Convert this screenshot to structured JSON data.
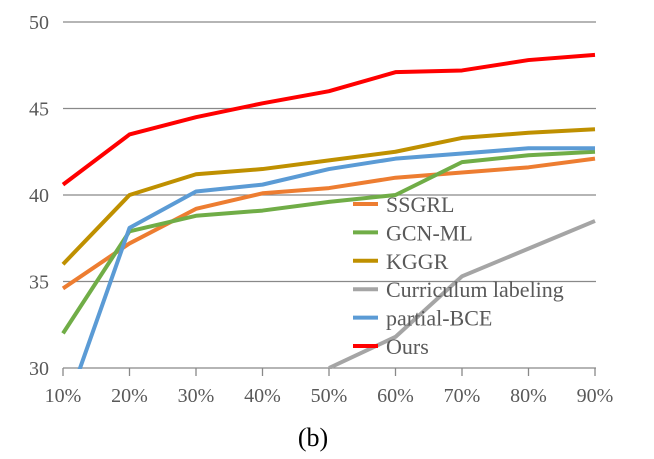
{
  "chart_data": {
    "type": "line",
    "title": "",
    "caption": "(b)",
    "xlabel": "",
    "ylabel": "",
    "categories": [
      "10%",
      "20%",
      "30%",
      "40%",
      "50%",
      "60%",
      "70%",
      "80%",
      "90%"
    ],
    "ylim": [
      30,
      50
    ],
    "yticks": [
      30,
      35,
      40,
      45,
      50
    ],
    "ytick_labels": [
      "30",
      "35",
      "40",
      "45",
      "50"
    ],
    "grid": true,
    "legend_position": "center-right",
    "series": [
      {
        "name": "SSGRL",
        "color": "#ED7D31",
        "values": [
          34.6,
          37.2,
          39.2,
          40.1,
          40.4,
          41.0,
          41.3,
          41.6,
          42.1
        ]
      },
      {
        "name": "GCN-ML",
        "color": "#70AD47",
        "values": [
          32.0,
          37.9,
          38.8,
          39.1,
          39.6,
          40.0,
          41.9,
          42.3,
          42.5
        ]
      },
      {
        "name": "KGGR",
        "color": "#BF9000",
        "values": [
          36.0,
          40.0,
          41.2,
          41.5,
          42.0,
          42.5,
          43.3,
          43.6,
          43.8
        ]
      },
      {
        "name": "Curriculum labeling",
        "color": "#A5A5A5",
        "values": [
          null,
          null,
          null,
          null,
          30.0,
          31.8,
          35.3,
          36.9,
          38.5
        ]
      },
      {
        "name": "partial-BCE",
        "color": "#5B9BD5",
        "values": [
          27.2,
          38.1,
          40.2,
          40.6,
          41.5,
          42.1,
          42.4,
          42.7,
          42.7
        ]
      },
      {
        "name": "Ours",
        "color": "#FF0000",
        "values": [
          40.6,
          43.5,
          44.5,
          45.3,
          46.0,
          47.1,
          47.2,
          47.8,
          48.1
        ]
      }
    ]
  }
}
